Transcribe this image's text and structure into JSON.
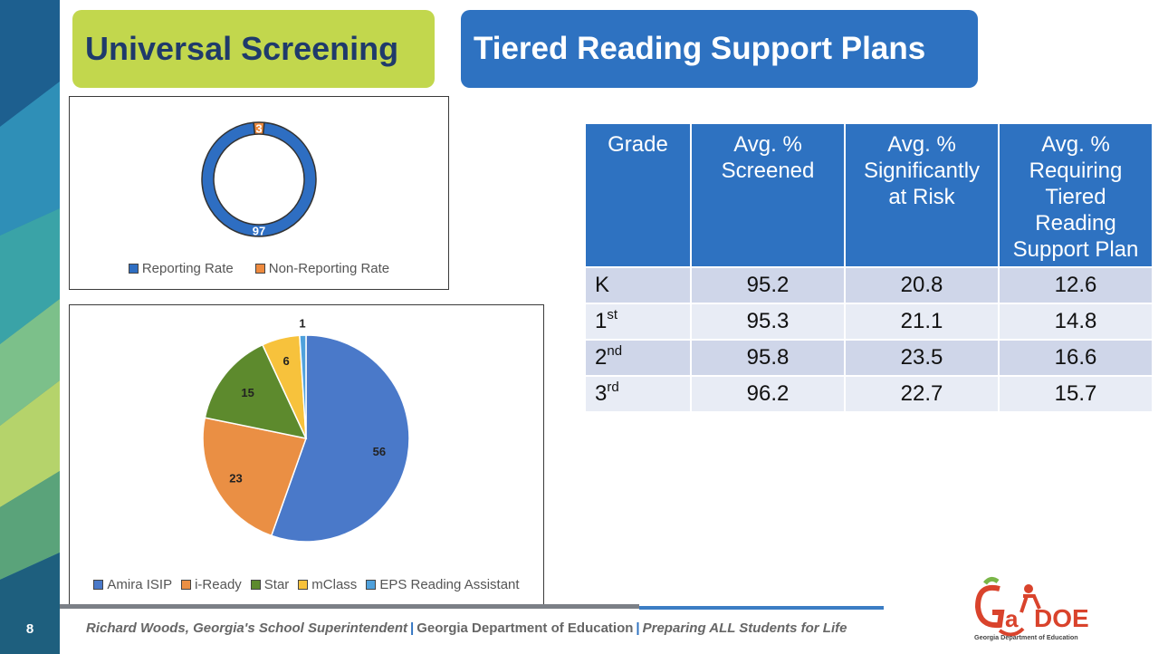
{
  "slide": {
    "page_number": "8",
    "title_left": "Universal Screening",
    "title_right": "Tiered Reading Support Plans"
  },
  "colors": {
    "accent_green": "#c2d74d",
    "accent_blue": "#2e72c1",
    "reporting": "#2e6ec2",
    "non_reporting": "#ee8a3e",
    "amira": "#4a79c9",
    "iready": "#ea8f44",
    "star": "#5d8a2d",
    "mclass": "#f7c23c",
    "eps": "#4fa1dc"
  },
  "chart_data": [
    {
      "type": "pie",
      "variant": "donut",
      "title": "",
      "categories": [
        "Reporting Rate",
        "Non-Reporting Rate"
      ],
      "values": [
        97,
        3
      ],
      "colors": [
        "#2e6ec2",
        "#ee8a3e"
      ],
      "legend_position": "bottom"
    },
    {
      "type": "pie",
      "title": "",
      "categories": [
        "Amira ISIP",
        "i-Ready",
        "Star",
        "mClass",
        "EPS Reading Assistant"
      ],
      "values": [
        56,
        23,
        15,
        6,
        1
      ],
      "colors": [
        "#4a79c9",
        "#ea8f44",
        "#5d8a2d",
        "#f7c23c",
        "#4fa1dc"
      ],
      "legend_position": "bottom"
    }
  ],
  "table": {
    "headers": [
      "Grade",
      "Avg. % Screened",
      "Avg. % Significantly at Risk",
      "Avg. % Requiring Tiered Reading Support Plan"
    ],
    "header_lines": [
      [
        "Grade"
      ],
      [
        "Avg. %",
        "Screened"
      ],
      [
        "Avg. %",
        "Significantly",
        "at Risk"
      ],
      [
        "Avg. %",
        "Requiring",
        "Tiered",
        "Reading",
        "Support Plan"
      ]
    ],
    "rows": [
      {
        "grade": "K",
        "sup": "",
        "screened": "95.2",
        "risk": "20.8",
        "plan": "12.6"
      },
      {
        "grade": "1",
        "sup": "st",
        "screened": "95.3",
        "risk": "21.1",
        "plan": "14.8"
      },
      {
        "grade": "2",
        "sup": "nd",
        "screened": "95.8",
        "risk": "23.5",
        "plan": "16.6"
      },
      {
        "grade": "3",
        "sup": "rd",
        "screened": "96.2",
        "risk": "22.7",
        "plan": "15.7"
      }
    ]
  },
  "footer": {
    "superintendent": "Richard Woods, Georgia's School Superintendent",
    "department": "Georgia Department of Education",
    "motto": "Preparing ALL Students for Life",
    "separator": "|"
  },
  "logo": {
    "text": "GaDOE",
    "subtitle": "Georgia Department of Education"
  }
}
